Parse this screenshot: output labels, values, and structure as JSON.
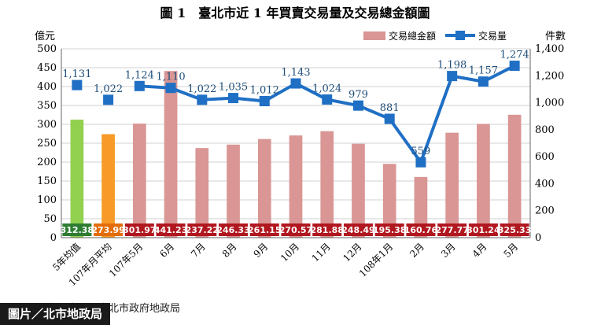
{
  "chart_data": {
    "type": "bar",
    "title": "圖 1　臺北市近 1 年買賣交易量及交易總金額圖",
    "ylabel_left": "億元",
    "ylabel_right": "件數",
    "ylim_left": [
      0,
      500
    ],
    "ylim_right": [
      0,
      1400
    ],
    "yticks_left": [
      "0",
      "50",
      "100",
      "150",
      "200",
      "250",
      "300",
      "350",
      "400",
      "450",
      "500"
    ],
    "yticks_right": [
      "0",
      "200",
      "400",
      "600",
      "800",
      "1,000",
      "1,200",
      "1,400"
    ],
    "categories": [
      "5年均值",
      "107年月平均",
      "107年5月",
      "6月",
      "7月",
      "8月",
      "9月",
      "10月",
      "11月",
      "12月",
      "108年1月",
      "2月",
      "3月",
      "4月",
      "5月"
    ],
    "legend_position": "top-right",
    "series": [
      {
        "name": "交易總金額",
        "kind": "bar",
        "axis": "left",
        "color": "#d99694",
        "values": [
          312.38,
          273.99,
          301.97,
          441.23,
          237.22,
          246.33,
          261.15,
          270.57,
          281.88,
          248.49,
          195.38,
          160.76,
          277.77,
          301.24,
          325.33
        ],
        "labels": [
          "312.38",
          "273.99",
          "301.97",
          "441.23",
          "237.22",
          "246.33",
          "261.15",
          "270.57",
          "281.88",
          "248.49",
          "195.38",
          "160.76",
          "277.77",
          "301.24",
          "325.33"
        ]
      },
      {
        "name": "交易量",
        "kind": "line",
        "axis": "right",
        "color": "#1f6fc5",
        "values": [
          null,
          null,
          1124,
          1110,
          1022,
          1035,
          1012,
          1143,
          1024,
          979,
          881,
          559,
          1198,
          1157,
          1274
        ],
        "labels": [
          "",
          "",
          "1,124",
          "1,110",
          "1,022",
          "1,035",
          "1,012",
          "1,143",
          "1,024",
          "979",
          "881",
          "559",
          "1,198",
          "1,157",
          "1,274"
        ]
      },
      {
        "name": "",
        "kind": "marker",
        "axis": "right",
        "color": "#1f6fc5",
        "values": [
          1131,
          1022,
          null,
          null,
          null,
          null,
          null,
          null,
          null,
          null,
          null,
          null,
          null,
          null,
          null
        ],
        "labels": [
          "1,131",
          "1,022",
          "",
          "",
          "",
          "",
          "",
          "",
          "",
          "",
          "",
          "",
          "",
          "",
          ""
        ]
      }
    ],
    "bar_colors": [
      "#92d050",
      "#f79a27",
      "#d99694",
      "#d99694",
      "#d99694",
      "#d99694",
      "#d99694",
      "#d99694",
      "#d99694",
      "#d99694",
      "#d99694",
      "#d99694",
      "#d99694",
      "#d99694",
      "#d99694"
    ],
    "value_box_colors": [
      "#2e7d32",
      "#e36c09",
      "#b0171f",
      "#b0171f",
      "#b0171f",
      "#b0171f",
      "#b0171f",
      "#b0171f",
      "#b0171f",
      "#b0171f",
      "#b0171f",
      "#b0171f",
      "#b0171f",
      "#b0171f",
      "#b0171f"
    ],
    "grid": true,
    "source": "資料來源：臺北市政府地政局"
  },
  "credit": "圖片／北市地政局"
}
